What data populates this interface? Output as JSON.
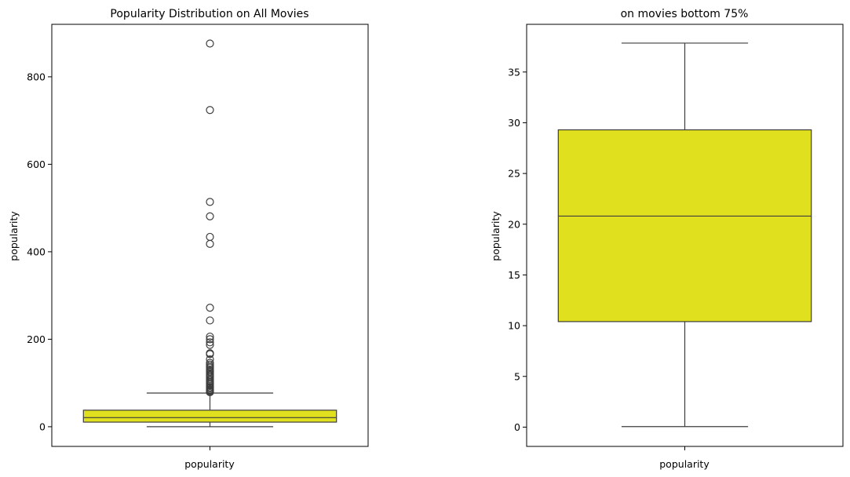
{
  "colors": {
    "box_fill": "#e0e01e",
    "line": "#3d3d3d",
    "axis": "#000000"
  },
  "chart_data": [
    {
      "type": "box",
      "title": "Popularity Distribution on All Movies",
      "ylabel": "popularity",
      "xlabel": "",
      "categories": [
        "popularity"
      ],
      "ylim": [
        -45,
        920
      ],
      "yticks": [
        0,
        200,
        400,
        600,
        800
      ],
      "box": {
        "min": 0.0,
        "q1": 10.5,
        "median": 20.8,
        "q3": 37.8,
        "whisker_high": 77
      },
      "outliers": [
        876,
        724,
        514,
        481,
        434,
        418,
        272,
        243,
        206,
        200,
        193,
        187,
        168,
        166,
        154,
        146,
        142,
        138,
        135,
        131,
        128,
        125,
        121,
        118,
        115,
        112,
        108,
        105,
        102,
        99,
        96,
        93,
        90,
        88,
        85,
        83,
        81,
        79
      ]
    },
    {
      "type": "box",
      "title": "on movies bottom 75%",
      "ylabel": "popularity",
      "xlabel": "",
      "categories": [
        "popularity"
      ],
      "ylim": [
        -1.9,
        39.7
      ],
      "yticks": [
        0,
        5,
        10,
        15,
        20,
        25,
        30,
        35
      ],
      "box": {
        "min": 0.05,
        "q1": 10.4,
        "median": 20.8,
        "q3": 29.3,
        "whisker_high": 37.85
      },
      "outliers": []
    }
  ]
}
